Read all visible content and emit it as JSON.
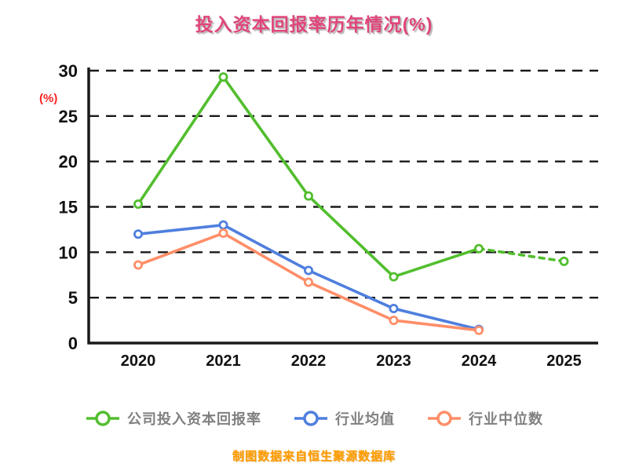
{
  "title": "投入资本回报率历年情况(%)",
  "y_axis_unit": "(%)",
  "footer": "制图数据来自恒生聚源数据库",
  "colors": {
    "title": "#e0457b",
    "axis": "#1a1a1a",
    "grid": "#1a1a1a",
    "legend_text": "#808080",
    "y_unit": "#ff2222",
    "footer": "#ff9c00",
    "series_green": "#52be2e",
    "series_blue": "#4f7fde",
    "series_orange": "#ff8e68"
  },
  "chart_data": {
    "type": "line",
    "title": "投入资本回报率历年情况(%)",
    "xlabel": "",
    "ylabel": "(%)",
    "categories": [
      "2020",
      "2021",
      "2022",
      "2023",
      "2024",
      "2025"
    ],
    "yticks": [
      0,
      5,
      10,
      15,
      20,
      25,
      30
    ],
    "ylim": [
      0,
      30
    ],
    "grid": "horizontal-dashed",
    "legend_position": "bottom",
    "series": [
      {
        "name": "公司投入资本回报率",
        "color": "#52be2e",
        "values": [
          15.3,
          29.3,
          16.2,
          7.3,
          10.4,
          9.0
        ],
        "dashed_from_index": 4
      },
      {
        "name": "行业均值",
        "color": "#4f7fde",
        "values": [
          12.0,
          13.0,
          8.0,
          3.8,
          1.5,
          null
        ],
        "dashed_from_index": null
      },
      {
        "name": "行业中位数",
        "color": "#ff8e68",
        "values": [
          8.6,
          12.1,
          6.7,
          2.5,
          1.4,
          null
        ],
        "dashed_from_index": null
      }
    ]
  }
}
